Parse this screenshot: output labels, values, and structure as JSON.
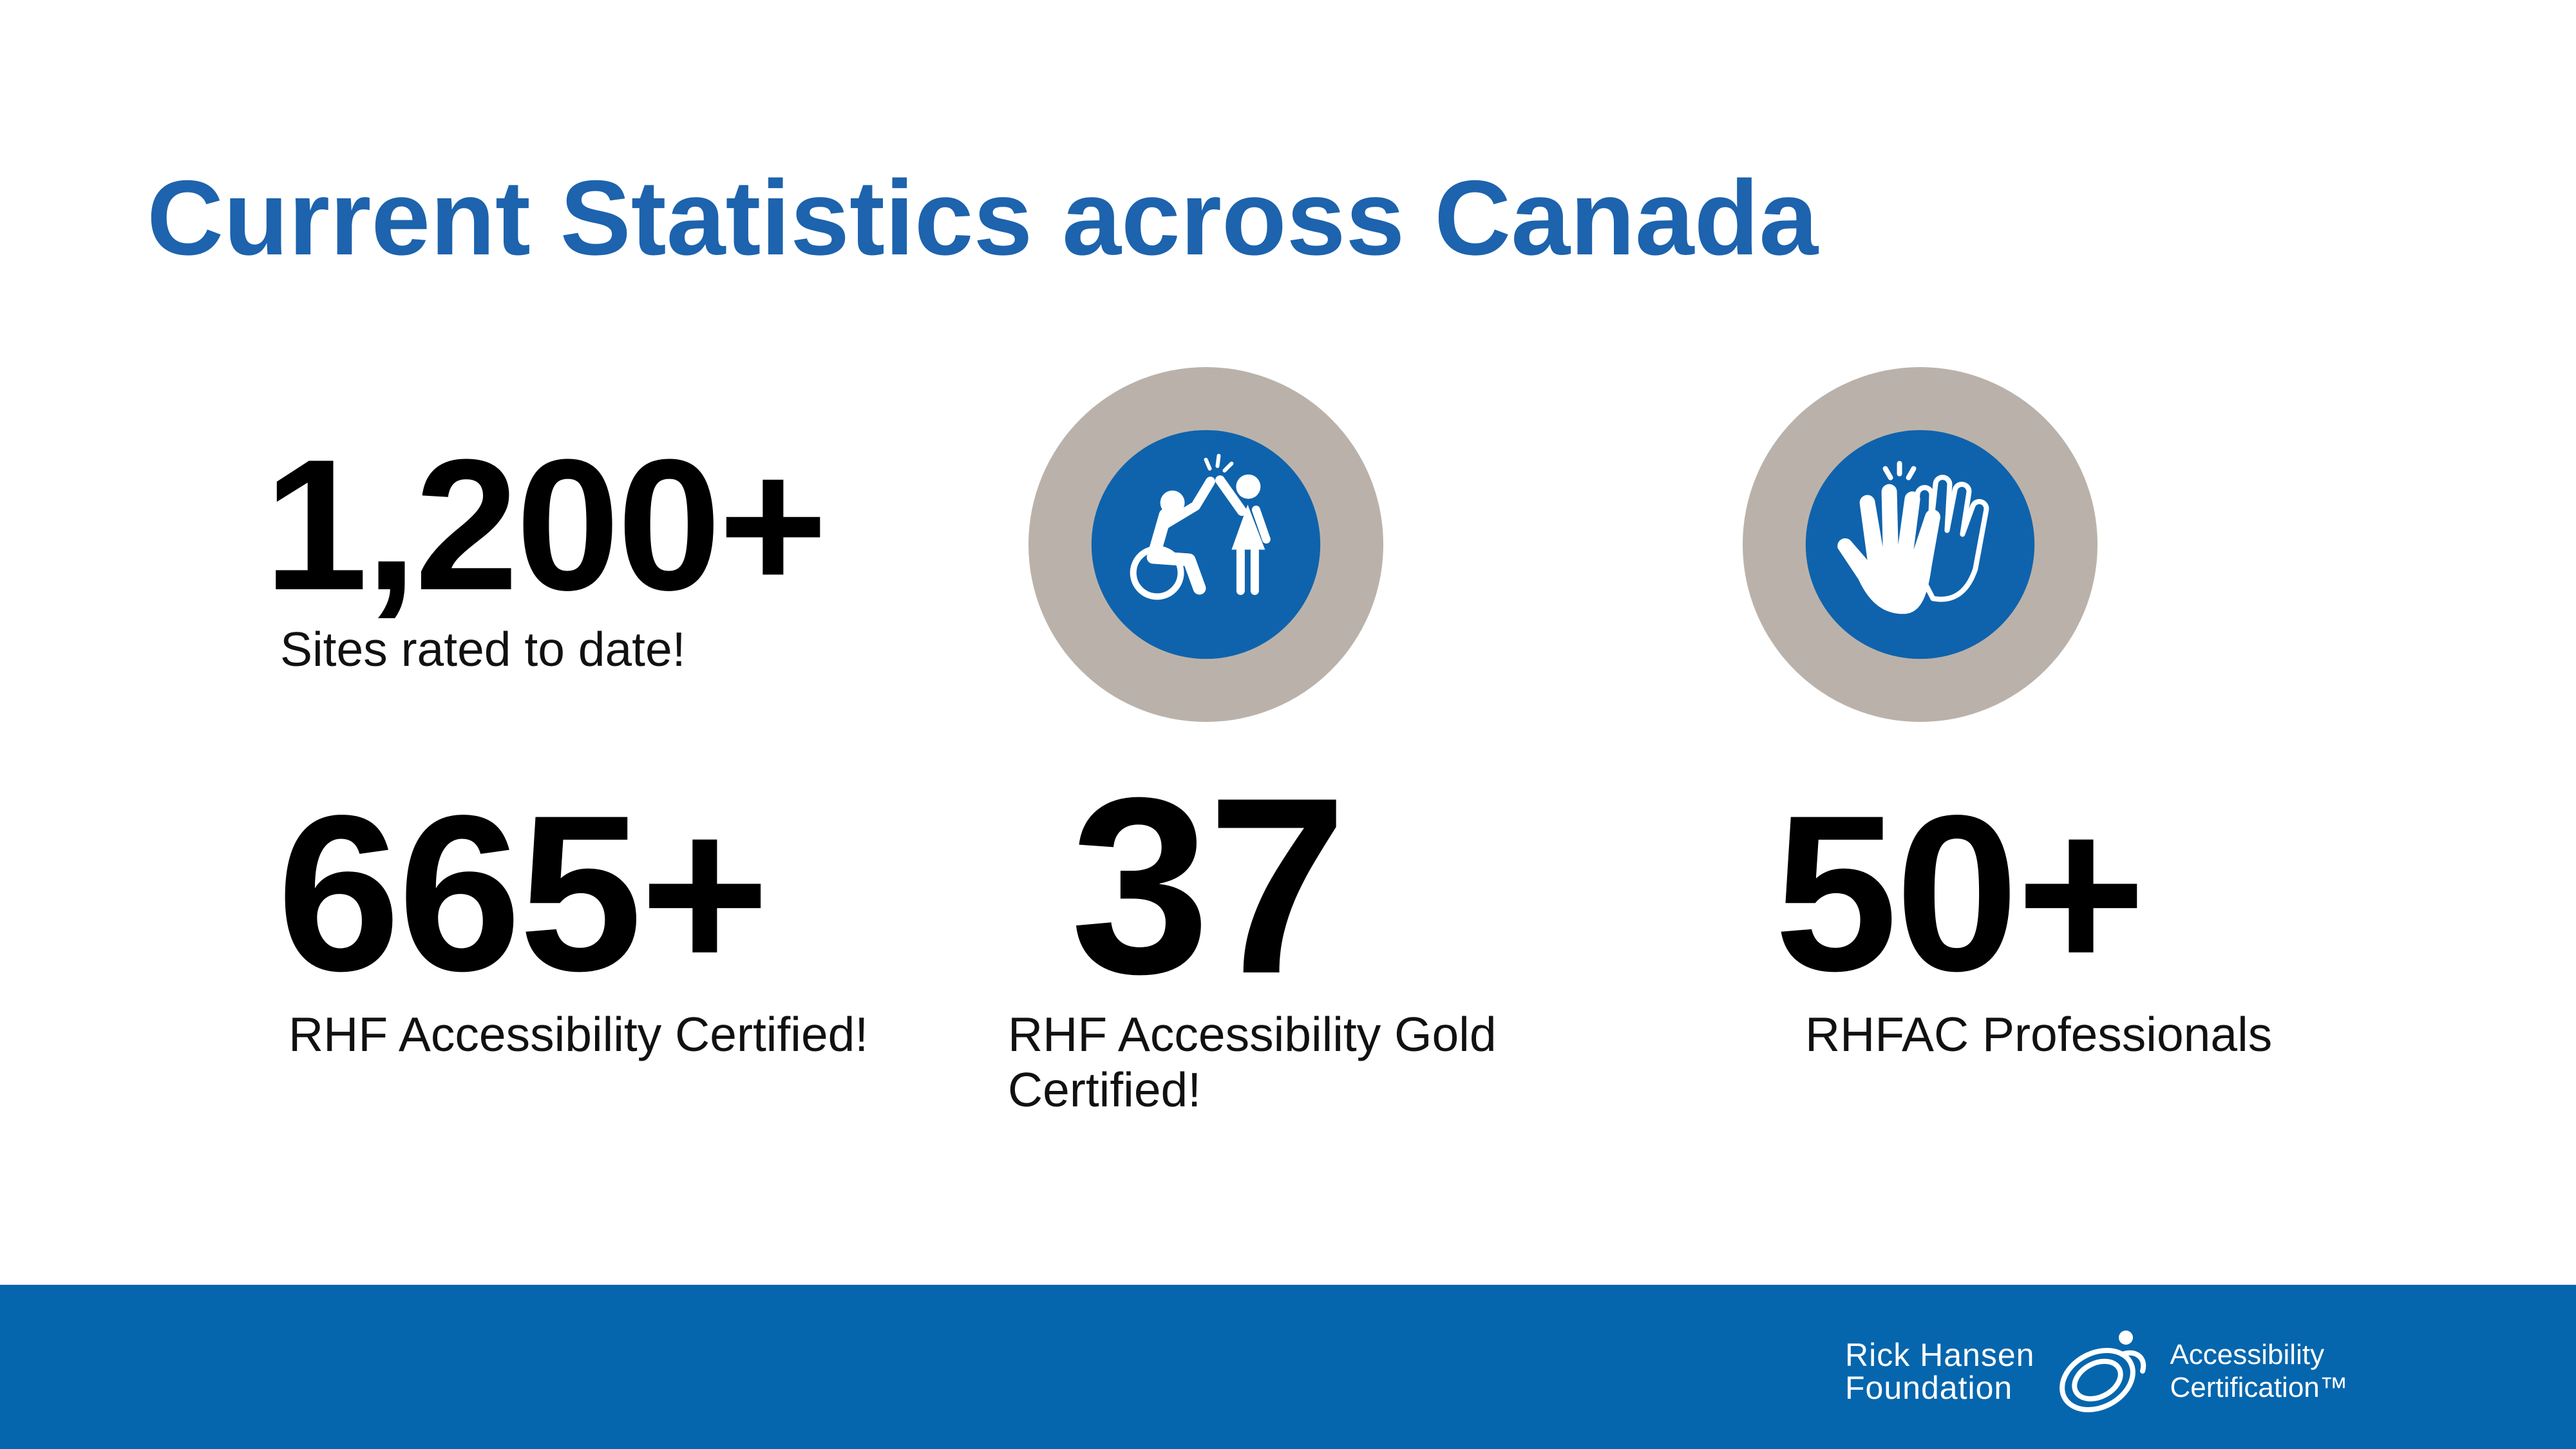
{
  "title": "Current Statistics across Canada",
  "stats": [
    {
      "value": "1,200+",
      "label": "Sites rated to date!"
    },
    {
      "value": "665+",
      "label": "RHF Accessibility Certified!"
    },
    {
      "value": "37",
      "label": "RHF Accessibility Gold Certified!"
    },
    {
      "value": "50+",
      "label": "RHFAC Professionals"
    }
  ],
  "icons": [
    {
      "name": "high-five-wheelchair-icon"
    },
    {
      "name": "high-five-hands-icon"
    }
  ],
  "footer": {
    "org_line1": "Rick Hansen",
    "org_line2": "Foundation",
    "program_line1": "Accessibility",
    "program_line2": "Certification™"
  },
  "colors": {
    "title": "#1d63ad",
    "footer": "#0566ad",
    "ring": "#bab2aa",
    "icon_fill": "#0f63ac"
  }
}
